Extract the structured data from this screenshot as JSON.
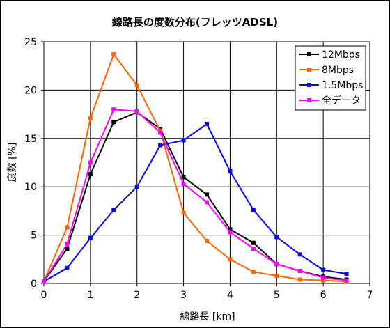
{
  "chart_data": {
    "type": "line",
    "title": "線路長の度数分布(フレッツADSL)",
    "xlabel": "線路長 [km]",
    "ylabel": "度数 [%]",
    "xlim": [
      0,
      7
    ],
    "ylim": [
      0,
      25
    ],
    "x_ticks": [
      "0",
      "1",
      "2",
      "3",
      "4",
      "5",
      "6",
      "7"
    ],
    "y_ticks": [
      "0",
      "5",
      "10",
      "15",
      "20",
      "25"
    ],
    "grid": true,
    "legend_position": "top-right",
    "x": [
      0,
      0.5,
      1,
      1.5,
      2,
      2.5,
      3,
      3.5,
      4,
      4.5,
      5,
      5.5,
      6,
      6.5
    ],
    "series": [
      {
        "name": "12Mbps",
        "color": "#000000",
        "values": [
          0.2,
          3.6,
          11.3,
          16.7,
          17.7,
          16.0,
          11.0,
          9.2,
          5.6,
          4.2,
          2.0,
          1.3,
          0.7,
          0.4
        ]
      },
      {
        "name": "8Mbps",
        "color": "#ff6600",
        "values": [
          0.2,
          5.8,
          17.1,
          23.7,
          20.5,
          15.8,
          7.3,
          4.4,
          2.5,
          1.2,
          0.8,
          0.4,
          0.3,
          0.2
        ]
      },
      {
        "name": "1.5Mbps",
        "color": "#0000ff",
        "values": [
          0.2,
          1.6,
          4.7,
          7.6,
          10.0,
          14.3,
          14.8,
          16.5,
          11.6,
          7.6,
          4.8,
          3.0,
          1.4,
          1.0
        ]
      },
      {
        "name": "全データ",
        "color": "#ff00ff",
        "values": [
          0.2,
          4.1,
          12.5,
          18.0,
          17.8,
          15.6,
          10.3,
          8.4,
          5.3,
          3.6,
          2.0,
          1.3,
          0.6,
          0.3
        ]
      }
    ]
  }
}
